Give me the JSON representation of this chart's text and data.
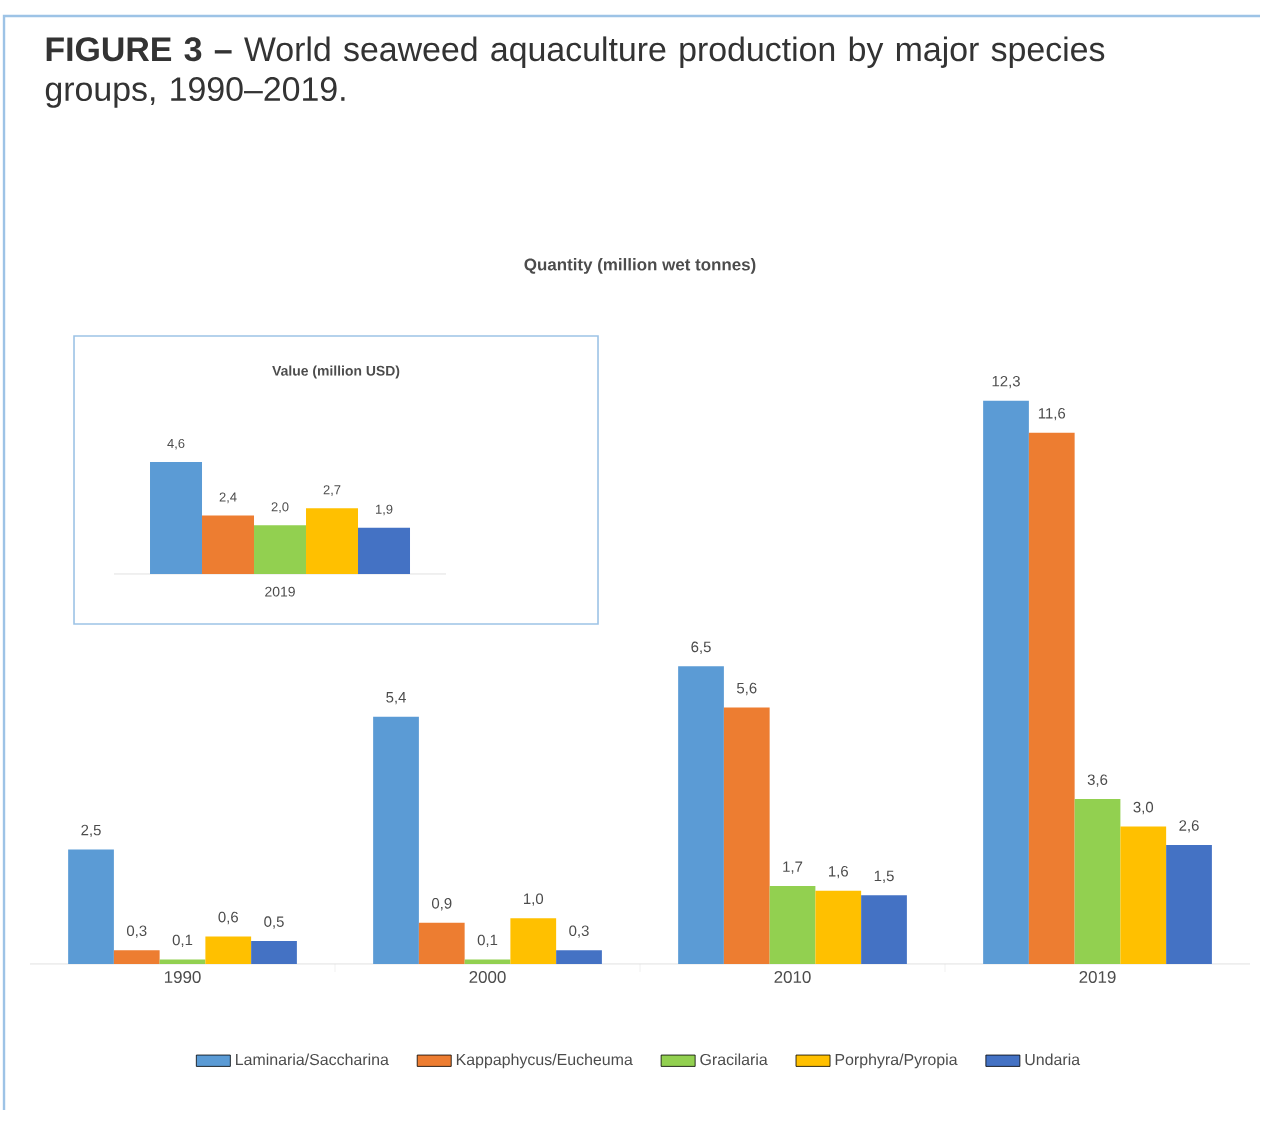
{
  "chart_data": [
    {
      "type": "bar",
      "title": "**FIGURE 3 –** World seaweed aquaculture production by major species groups, 1990–2019.",
      "subtitle": "Quantity (million wet tonnes)",
      "categories": [
        "1990",
        "2000",
        "2010",
        "2019"
      ],
      "legend": "bottom",
      "series": [
        {
          "name": "Laminaria/Saccharina",
          "color": "#5b9bd5",
          "values": [
            2.5,
            5.4,
            6.5,
            12.3
          ],
          "value_labels": [
            "2,5",
            "5,4",
            "6,5",
            "12,3"
          ]
        },
        {
          "name": "Kappaphycus/Eucheuma",
          "color": "#ed7d31",
          "values": [
            0.3,
            0.9,
            5.6,
            11.6
          ],
          "value_labels": [
            "0,3",
            "0,9",
            "5,6",
            "11,6"
          ]
        },
        {
          "name": "Gracilaria",
          "color": "#92d050",
          "values": [
            0.1,
            0.1,
            1.7,
            3.6
          ],
          "value_labels": [
            "0,1",
            "0,1",
            "1,7",
            "3,6"
          ]
        },
        {
          "name": "Porphyra/Pyropia",
          "color": "#ffc000",
          "values": [
            0.6,
            1.0,
            1.6,
            3.0
          ],
          "value_labels": [
            "0,6",
            "1,0",
            "1,6",
            "3,0"
          ]
        },
        {
          "name": "Undaria",
          "color": "#4472c4",
          "values": [
            0.5,
            0.3,
            1.5,
            2.6
          ],
          "value_labels": [
            "0,5",
            "0,3",
            "1,5",
            "2,6"
          ]
        }
      ]
    },
    {
      "type": "bar",
      "title": "Value (million USD)",
      "xlabel": "2019",
      "categories": [
        null,
        null,
        null,
        null,
        null
      ],
      "values": [
        4.6,
        2.4,
        2.0,
        2.7,
        1.9
      ],
      "colors": [
        "#5b9bd5",
        "#ed7d31",
        "#92d050",
        "#ffc000",
        "#4472c4"
      ],
      "value_labels": [
        "4,6",
        "2,4",
        "2,0",
        "2,7",
        "1,9"
      ]
    }
  ]
}
